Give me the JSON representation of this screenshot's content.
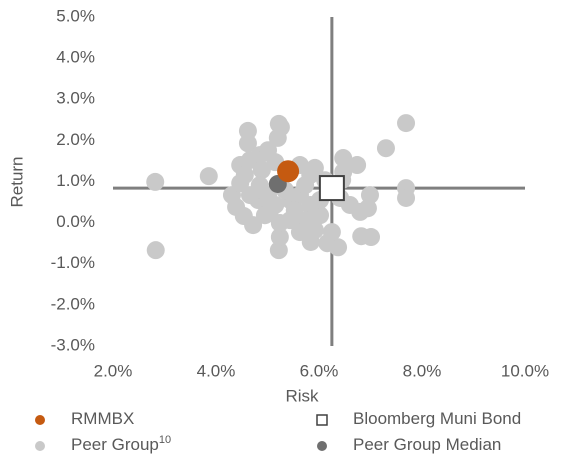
{
  "chart_data": {
    "type": "scatter",
    "xlabel": "Risk",
    "ylabel": "Return",
    "xlim": [
      2,
      10
    ],
    "ylim": [
      -3,
      5
    ],
    "xticks": [
      {
        "value": 2,
        "label": "2.0%"
      },
      {
        "value": 4,
        "label": "4.0%"
      },
      {
        "value": 6,
        "label": "6.0%"
      },
      {
        "value": 8,
        "label": "8.0%"
      },
      {
        "value": 10,
        "label": "10.0%"
      }
    ],
    "yticks": [
      {
        "value": -3,
        "label": "-3.0%"
      },
      {
        "value": -2,
        "label": "-2.0%"
      },
      {
        "value": -1,
        "label": "-1.0%"
      },
      {
        "value": 0,
        "label": "0.0%"
      },
      {
        "value": 1,
        "label": "1.0%"
      },
      {
        "value": 2,
        "label": "2.0%"
      },
      {
        "value": 3,
        "label": "3.0%"
      },
      {
        "value": 4,
        "label": "4.0%"
      },
      {
        "value": 5,
        "label": "5.0%"
      }
    ],
    "grid": false,
    "crosshair": true,
    "legend": "bottom",
    "series": [
      {
        "name": "Peer Group",
        "name_superscript": "10",
        "color": "#c9c9c9",
        "marker": "circle",
        "x": [
          2.82,
          2.83,
          3.86,
          4.62,
          4.62,
          5.22,
          5.26,
          5.2,
          7.69,
          7.3,
          6.47,
          6.74,
          6.47,
          6.45,
          7.69,
          7.69,
          6.99,
          6.95,
          6.8,
          6.82,
          7.01,
          6.37,
          6.16,
          5.84,
          6.25,
          5.22,
          5.24,
          5.24,
          4.72,
          4.54,
          4.39,
          4.31,
          4.47,
          4.47,
          4.66,
          4.85,
          5.01,
          5.15,
          4.89,
          4.85,
          4.82,
          5.05,
          5.01,
          5.44,
          5.63,
          5.73,
          5.83,
          5.92,
          5.63,
          5.53,
          5.83,
          6.02,
          5.73,
          5.44,
          4.95,
          4.66,
          4.56,
          5.15,
          5.34,
          6.02,
          6.12,
          6.41,
          6.6,
          5.92,
          5.63
        ],
        "values": [
          0.99,
          -0.67,
          1.13,
          2.23,
          1.93,
          2.4,
          2.32,
          2.06,
          2.42,
          1.81,
          1.57,
          1.4,
          1.23,
          1.04,
          0.84,
          0.6,
          0.67,
          0.35,
          0.26,
          -0.33,
          -0.35,
          -0.6,
          -0.5,
          -0.47,
          -0.23,
          -0.67,
          -0.35,
          -0.01,
          -0.06,
          0.16,
          0.38,
          0.67,
          0.96,
          1.4,
          1.52,
          1.64,
          1.76,
          1.47,
          1.28,
          0.91,
          0.55,
          0.3,
          0.67,
          0.55,
          0.67,
          0.91,
          1.16,
          1.33,
          1.4,
          0.3,
          0.43,
          0.18,
          0.06,
          0.06,
          0.18,
          0.67,
          1.16,
          0.43,
          0.79,
          0.55,
          1.03,
          0.6,
          0.43,
          -0.18,
          -0.23
        ]
      },
      {
        "name": "Bloomberg Muni Bond",
        "color": "#ffffff",
        "marker": "square",
        "x": [
          6.25
        ],
        "values": [
          0.84
        ]
      },
      {
        "name": "Peer Group Median",
        "color": "#6f6f6f",
        "marker": "circle",
        "x": [
          5.2
        ],
        "values": [
          0.94
        ]
      },
      {
        "name": "RMMBX",
        "color": "#c55a11",
        "marker": "circle",
        "x": [
          5.4
        ],
        "values": [
          1.25
        ]
      }
    ]
  }
}
